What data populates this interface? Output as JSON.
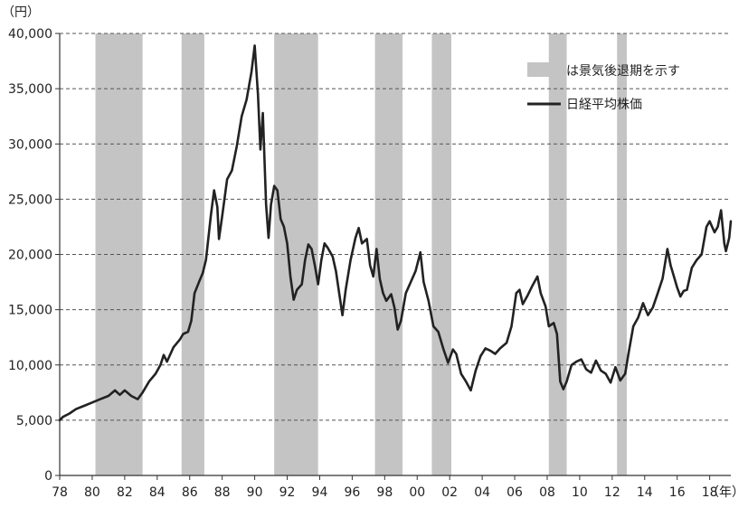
{
  "chart_data": {
    "type": "line",
    "y_unit": "（円）",
    "x_unit": "（年）",
    "ylim": [
      0,
      40000
    ],
    "xlim": [
      1978,
      2019.3
    ],
    "grid": {
      "horizontal": true,
      "style": "dashed"
    },
    "legend_position": "top-right",
    "y_ticks": [
      {
        "value": 0,
        "label": "0"
      },
      {
        "value": 5000,
        "label": "5,000"
      },
      {
        "value": 10000,
        "label": "10,000"
      },
      {
        "value": 15000,
        "label": "15,000"
      },
      {
        "value": 20000,
        "label": "20,000"
      },
      {
        "value": 25000,
        "label": "25,000"
      },
      {
        "value": 30000,
        "label": "30,000"
      },
      {
        "value": 35000,
        "label": "35,000"
      },
      {
        "value": 40000,
        "label": "40,000"
      }
    ],
    "x_ticks": [
      {
        "value": 1978,
        "label": "78"
      },
      {
        "value": 1980,
        "label": "80"
      },
      {
        "value": 1982,
        "label": "82"
      },
      {
        "value": 1984,
        "label": "84"
      },
      {
        "value": 1986,
        "label": "86"
      },
      {
        "value": 1988,
        "label": "88"
      },
      {
        "value": 1990,
        "label": "90"
      },
      {
        "value": 1992,
        "label": "92"
      },
      {
        "value": 1994,
        "label": "94"
      },
      {
        "value": 1996,
        "label": "96"
      },
      {
        "value": 1998,
        "label": "98"
      },
      {
        "value": 2000,
        "label": "00"
      },
      {
        "value": 2002,
        "label": "02"
      },
      {
        "value": 2004,
        "label": "04"
      },
      {
        "value": 2006,
        "label": "06"
      },
      {
        "value": 2008,
        "label": "08"
      },
      {
        "value": 2010,
        "label": "10"
      },
      {
        "value": 2012,
        "label": "12"
      },
      {
        "value": 2014,
        "label": "14"
      },
      {
        "value": 2016,
        "label": "16"
      },
      {
        "value": 2018,
        "label": "18"
      }
    ],
    "legend": {
      "recession_label": "は景気後退期を示す",
      "line_label": "日経平均株価"
    },
    "colors": {
      "line": "#222222",
      "recession": "#c4c4c4",
      "grid": "#555555",
      "axis": "#333333"
    },
    "recessions": [
      {
        "start": 1980.2,
        "end": 1983.1
      },
      {
        "start": 1985.5,
        "end": 1986.9
      },
      {
        "start": 1991.2,
        "end": 1993.9
      },
      {
        "start": 1997.4,
        "end": 1999.1
      },
      {
        "start": 2000.9,
        "end": 2002.1
      },
      {
        "start": 2008.1,
        "end": 2009.2
      },
      {
        "start": 2012.3,
        "end": 2012.9
      }
    ],
    "series": [
      {
        "values": [
          [
            1978.0,
            5000
          ],
          [
            1978.2,
            5300
          ],
          [
            1978.6,
            5600
          ],
          [
            1979.0,
            6000
          ],
          [
            1979.5,
            6300
          ],
          [
            1980.0,
            6600
          ],
          [
            1980.5,
            6900
          ],
          [
            1981.0,
            7200
          ],
          [
            1981.4,
            7700
          ],
          [
            1981.7,
            7300
          ],
          [
            1982.0,
            7700
          ],
          [
            1982.4,
            7200
          ],
          [
            1982.8,
            6900
          ],
          [
            1983.1,
            7500
          ],
          [
            1983.5,
            8500
          ],
          [
            1983.9,
            9200
          ],
          [
            1984.2,
            10000
          ],
          [
            1984.4,
            10900
          ],
          [
            1984.6,
            10300
          ],
          [
            1985.0,
            11600
          ],
          [
            1985.4,
            12300
          ],
          [
            1985.6,
            12800
          ],
          [
            1985.9,
            13000
          ],
          [
            1986.1,
            14000
          ],
          [
            1986.3,
            16500
          ],
          [
            1986.6,
            17600
          ],
          [
            1986.8,
            18300
          ],
          [
            1987.0,
            19500
          ],
          [
            1987.3,
            23500
          ],
          [
            1987.5,
            25800
          ],
          [
            1987.7,
            24300
          ],
          [
            1987.8,
            21400
          ],
          [
            1988.0,
            23500
          ],
          [
            1988.3,
            26800
          ],
          [
            1988.6,
            27600
          ],
          [
            1988.9,
            29800
          ],
          [
            1989.2,
            32500
          ],
          [
            1989.5,
            34000
          ],
          [
            1989.8,
            36500
          ],
          [
            1990.0,
            38900
          ],
          [
            1990.2,
            34500
          ],
          [
            1990.35,
            29500
          ],
          [
            1990.5,
            32800
          ],
          [
            1990.7,
            24500
          ],
          [
            1990.85,
            21500
          ],
          [
            1991.0,
            24500
          ],
          [
            1991.2,
            26200
          ],
          [
            1991.4,
            25800
          ],
          [
            1991.6,
            23200
          ],
          [
            1991.8,
            22500
          ],
          [
            1992.0,
            21000
          ],
          [
            1992.2,
            18000
          ],
          [
            1992.4,
            15900
          ],
          [
            1992.6,
            16800
          ],
          [
            1992.9,
            17300
          ],
          [
            1993.1,
            19500
          ],
          [
            1993.3,
            20900
          ],
          [
            1993.5,
            20500
          ],
          [
            1993.7,
            19000
          ],
          [
            1993.9,
            17300
          ],
          [
            1994.1,
            19500
          ],
          [
            1994.3,
            21000
          ],
          [
            1994.5,
            20600
          ],
          [
            1994.8,
            19800
          ],
          [
            1995.0,
            18500
          ],
          [
            1995.2,
            16500
          ],
          [
            1995.4,
            14500
          ],
          [
            1995.6,
            16800
          ],
          [
            1995.9,
            19500
          ],
          [
            1996.2,
            21500
          ],
          [
            1996.4,
            22400
          ],
          [
            1996.6,
            21000
          ],
          [
            1996.9,
            21400
          ],
          [
            1997.1,
            19000
          ],
          [
            1997.3,
            18000
          ],
          [
            1997.5,
            20500
          ],
          [
            1997.7,
            17800
          ],
          [
            1997.9,
            16500
          ],
          [
            1998.1,
            15800
          ],
          [
            1998.4,
            16400
          ],
          [
            1998.6,
            15200
          ],
          [
            1998.8,
            13200
          ],
          [
            1999.0,
            14000
          ],
          [
            1999.3,
            16500
          ],
          [
            1999.6,
            17500
          ],
          [
            1999.9,
            18500
          ],
          [
            2000.2,
            20200
          ],
          [
            2000.4,
            17500
          ],
          [
            2000.7,
            15800
          ],
          [
            2001.0,
            13500
          ],
          [
            2001.3,
            13000
          ],
          [
            2001.6,
            11500
          ],
          [
            2001.9,
            10200
          ],
          [
            2002.2,
            11400
          ],
          [
            2002.4,
            11000
          ],
          [
            2002.7,
            9200
          ],
          [
            2003.0,
            8500
          ],
          [
            2003.3,
            7700
          ],
          [
            2003.6,
            9500
          ],
          [
            2003.9,
            10800
          ],
          [
            2004.2,
            11500
          ],
          [
            2004.5,
            11300
          ],
          [
            2004.8,
            11000
          ],
          [
            2005.1,
            11500
          ],
          [
            2005.5,
            12000
          ],
          [
            2005.8,
            13500
          ],
          [
            2006.1,
            16500
          ],
          [
            2006.3,
            16800
          ],
          [
            2006.5,
            15500
          ],
          [
            2006.8,
            16300
          ],
          [
            2007.1,
            17200
          ],
          [
            2007.4,
            18000
          ],
          [
            2007.6,
            16500
          ],
          [
            2007.9,
            15300
          ],
          [
            2008.1,
            13500
          ],
          [
            2008.4,
            13800
          ],
          [
            2008.6,
            12800
          ],
          [
            2008.8,
            8500
          ],
          [
            2009.0,
            7800
          ],
          [
            2009.2,
            8500
          ],
          [
            2009.5,
            10000
          ],
          [
            2009.8,
            10300
          ],
          [
            2010.1,
            10500
          ],
          [
            2010.4,
            9600
          ],
          [
            2010.7,
            9300
          ],
          [
            2011.0,
            10400
          ],
          [
            2011.3,
            9500
          ],
          [
            2011.6,
            9200
          ],
          [
            2011.9,
            8400
          ],
          [
            2012.2,
            9800
          ],
          [
            2012.5,
            8600
          ],
          [
            2012.8,
            9200
          ],
          [
            2013.0,
            11000
          ],
          [
            2013.3,
            13500
          ],
          [
            2013.6,
            14300
          ],
          [
            2013.9,
            15600
          ],
          [
            2014.2,
            14500
          ],
          [
            2014.5,
            15200
          ],
          [
            2014.8,
            16500
          ],
          [
            2015.1,
            17800
          ],
          [
            2015.4,
            20500
          ],
          [
            2015.6,
            19000
          ],
          [
            2015.8,
            18000
          ],
          [
            2016.0,
            17000
          ],
          [
            2016.2,
            16200
          ],
          [
            2016.4,
            16700
          ],
          [
            2016.6,
            16800
          ],
          [
            2016.9,
            18800
          ],
          [
            2017.2,
            19500
          ],
          [
            2017.5,
            20000
          ],
          [
            2017.8,
            22500
          ],
          [
            2018.0,
            23000
          ],
          [
            2018.3,
            22000
          ],
          [
            2018.5,
            22500
          ],
          [
            2018.7,
            24000
          ],
          [
            2018.9,
            21000
          ],
          [
            2019.0,
            20300
          ],
          [
            2019.2,
            21500
          ],
          [
            2019.3,
            23000
          ]
        ]
      }
    ]
  }
}
